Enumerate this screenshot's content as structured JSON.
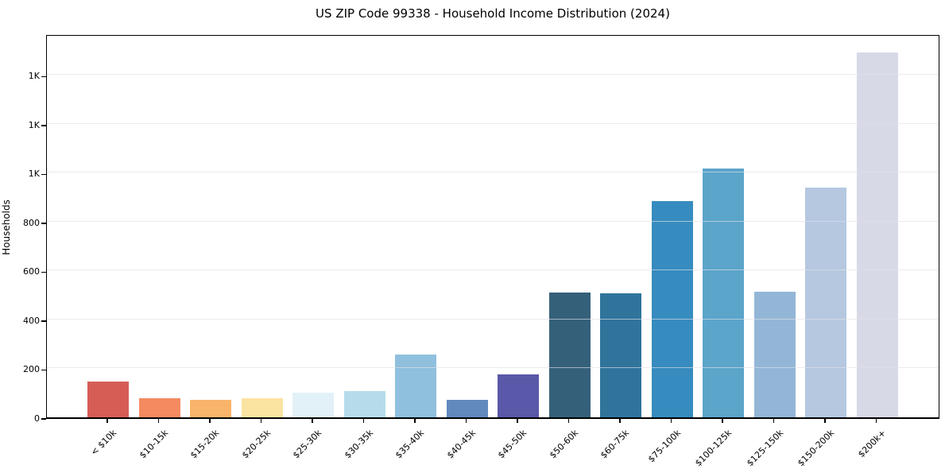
{
  "chart_data": {
    "type": "bar",
    "title": "US ZIP Code 99338 - Household Income Distribution (2024)",
    "xlabel": "",
    "ylabel": "Households",
    "categories": [
      "< $10k",
      "$10-15k",
      "$15-20k",
      "$20-25k",
      "$25-30k",
      "$30-35k",
      "$35-40k",
      "$40-45k",
      "$45-50k",
      "$50-60k",
      "$60-75k",
      "$75-100k",
      "$100-125k",
      "$125-150k",
      "$150-200k",
      "$200k+"
    ],
    "values": [
      145,
      78,
      71,
      77,
      100,
      108,
      258,
      73,
      175,
      510,
      508,
      884,
      1017,
      514,
      939,
      1491
    ],
    "bar_colors": [
      "#d65d56",
      "#f58a61",
      "#f8b46a",
      "#fbe3a1",
      "#e2f1f8",
      "#b6dcea",
      "#8fc0dd",
      "#6289bd",
      "#5a58a8",
      "#35607a",
      "#30749c",
      "#368cbf",
      "#5ba4ca",
      "#93b6d7",
      "#b5c8e0",
      "#d7d9e7"
    ],
    "yticks": {
      "values": [
        0,
        200,
        400,
        600,
        800,
        1000,
        1200,
        1400
      ],
      "labels": [
        "0",
        "200",
        "400",
        "600",
        "800",
        "1K",
        "1K",
        "1K"
      ]
    },
    "ylim": [
      0,
      1570
    ],
    "grid": "horizontal",
    "legend": null,
    "axis_color": "#000000",
    "background_color": "#ffffff"
  }
}
